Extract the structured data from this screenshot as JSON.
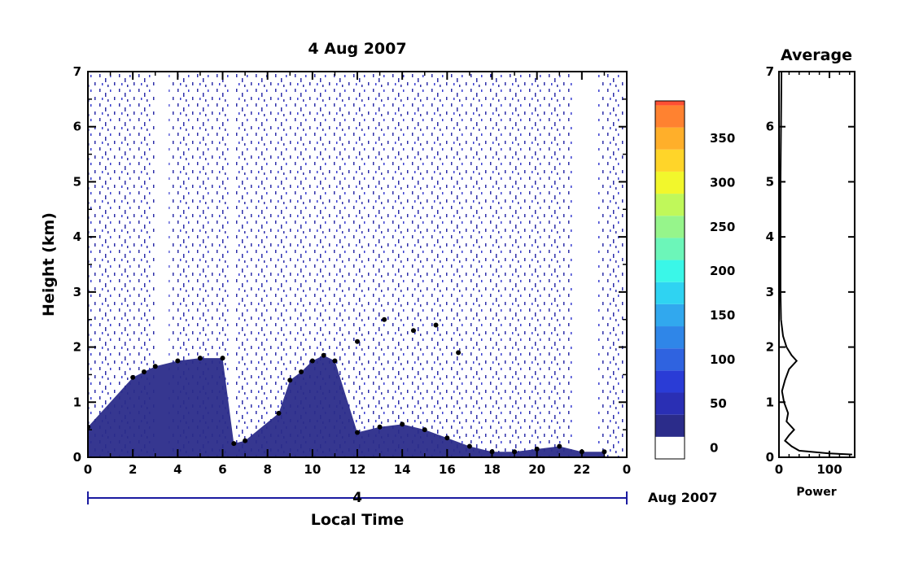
{
  "chart_data": [
    {
      "type": "heatmap",
      "title": "4 Aug 2007",
      "xlabel": "Local Time",
      "ylabel": "Height (km)",
      "xlim": [
        0,
        24
      ],
      "ylim": [
        0,
        7
      ],
      "x_ticks": [
        "0",
        "2",
        "4",
        "6",
        "8",
        "10",
        "12",
        "14",
        "16",
        "18",
        "20",
        "22",
        "0"
      ],
      "y_ticks": [
        "0",
        "1",
        "2",
        "3",
        "4",
        "5",
        "6",
        "7"
      ],
      "day_label": "4",
      "date_label": "Aug 2007",
      "data_gaps_hours": [
        [
          3.0,
          3.6
        ],
        [
          6.3,
          6.5
        ],
        [
          21.6,
          22.7
        ]
      ],
      "boundary_layer_top_km": [
        {
          "x": 0.0,
          "y": 0.55
        },
        {
          "x": 2.0,
          "y": 1.45
        },
        {
          "x": 2.5,
          "y": 1.55
        },
        {
          "x": 3.0,
          "y": 1.65
        },
        {
          "x": 4.0,
          "y": 1.75
        },
        {
          "x": 5.0,
          "y": 1.8
        },
        {
          "x": 6.0,
          "y": 1.8
        },
        {
          "x": 6.5,
          "y": 0.25
        },
        {
          "x": 7.0,
          "y": 0.3
        },
        {
          "x": 8.5,
          "y": 0.8
        },
        {
          "x": 9.0,
          "y": 1.4
        },
        {
          "x": 9.5,
          "y": 1.55
        },
        {
          "x": 10.0,
          "y": 1.75
        },
        {
          "x": 10.5,
          "y": 1.85
        },
        {
          "x": 11.0,
          "y": 1.75
        },
        {
          "x": 12.0,
          "y": 0.45
        },
        {
          "x": 13.0,
          "y": 0.55
        },
        {
          "x": 14.0,
          "y": 0.6
        },
        {
          "x": 15.0,
          "y": 0.5
        },
        {
          "x": 16.0,
          "y": 0.35
        },
        {
          "x": 17.0,
          "y": 0.2
        },
        {
          "x": 18.0,
          "y": 0.1
        },
        {
          "x": 19.0,
          "y": 0.1
        },
        {
          "x": 20.0,
          "y": 0.15
        },
        {
          "x": 21.0,
          "y": 0.2
        },
        {
          "x": 22.0,
          "y": 0.1
        },
        {
          "x": 23.0,
          "y": 0.1
        }
      ],
      "aerosol_layer_km": [
        {
          "x": 12.0,
          "y": 2.1
        },
        {
          "x": 13.2,
          "y": 2.5
        },
        {
          "x": 14.5,
          "y": 2.3
        },
        {
          "x": 15.5,
          "y": 2.4
        },
        {
          "x": 16.5,
          "y": 1.9
        }
      ]
    },
    {
      "type": "colorbar",
      "tick_labels": [
        "0",
        "50",
        "100",
        "150",
        "200",
        "250",
        "300",
        "350"
      ],
      "min": -25,
      "max": 380,
      "step": 25,
      "colors": [
        "#ffffff",
        "#2b2c8a",
        "#2a2fb4",
        "#2a3cd6",
        "#2f63e0",
        "#2f86e8",
        "#31a8ee",
        "#2fd3f2",
        "#3af7e8",
        "#6cf6b9",
        "#96f58b",
        "#c0f85a",
        "#f2f72c",
        "#ffd529",
        "#ffaf2a",
        "#ff8230",
        "#ff4f33",
        "#f0302c"
      ]
    },
    {
      "type": "line",
      "title": "Average",
      "xlabel": "Power",
      "xlim": [
        0,
        150
      ],
      "ylim": [
        0,
        7
      ],
      "x_ticks": [
        "0",
        "100"
      ],
      "y_ticks": [
        "0",
        "1",
        "2",
        "3",
        "4",
        "5",
        "6",
        "7"
      ],
      "points": [
        {
          "x": 5,
          "y": 7.0
        },
        {
          "x": 4,
          "y": 6.0
        },
        {
          "x": 3,
          "y": 5.0
        },
        {
          "x": 3,
          "y": 4.0
        },
        {
          "x": 3,
          "y": 3.0
        },
        {
          "x": 4,
          "y": 2.5
        },
        {
          "x": 8,
          "y": 2.2
        },
        {
          "x": 15,
          "y": 2.0
        },
        {
          "x": 25,
          "y": 1.85
        },
        {
          "x": 35,
          "y": 1.75
        },
        {
          "x": 20,
          "y": 1.6
        },
        {
          "x": 12,
          "y": 1.4
        },
        {
          "x": 6,
          "y": 1.2
        },
        {
          "x": 10,
          "y": 1.0
        },
        {
          "x": 18,
          "y": 0.8
        },
        {
          "x": 15,
          "y": 0.65
        },
        {
          "x": 30,
          "y": 0.5
        },
        {
          "x": 20,
          "y": 0.4
        },
        {
          "x": 12,
          "y": 0.3
        },
        {
          "x": 25,
          "y": 0.2
        },
        {
          "x": 40,
          "y": 0.12
        },
        {
          "x": 100,
          "y": 0.07
        },
        {
          "x": 145,
          "y": 0.05
        }
      ]
    }
  ]
}
